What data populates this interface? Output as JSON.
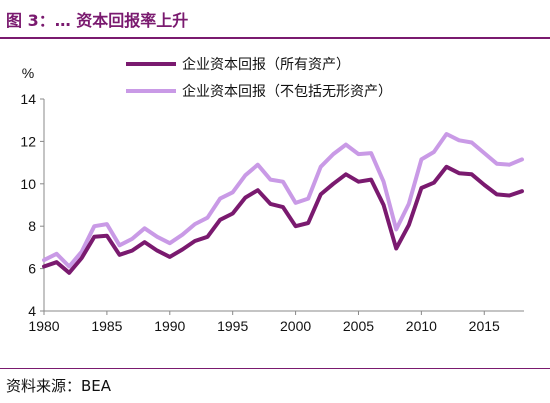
{
  "header": {
    "title": "图 3：… 资本回报率上升"
  },
  "footer": {
    "source": "资料来源：BEA"
  },
  "colors": {
    "accent": "#7a1a6f",
    "series1": "#7a1a6f",
    "series2": "#c99ae6"
  },
  "chart_data": {
    "type": "line",
    "title": "",
    "ylabel": "%",
    "xlabel": "",
    "xlim": [
      1980,
      2018
    ],
    "ylim": [
      4,
      14
    ],
    "xticks": [
      1980,
      1985,
      1990,
      1995,
      2000,
      2005,
      2010,
      2015
    ],
    "yticks": [
      4,
      6,
      8,
      10,
      12,
      14
    ],
    "legend_position": "top",
    "x": [
      1980,
      1981,
      1982,
      1983,
      1984,
      1985,
      1986,
      1987,
      1988,
      1989,
      1990,
      1991,
      1992,
      1993,
      1994,
      1995,
      1996,
      1997,
      1998,
      1999,
      2000,
      2001,
      2002,
      2003,
      2004,
      2005,
      2006,
      2007,
      2008,
      2009,
      2010,
      2011,
      2012,
      2013,
      2014,
      2015,
      2016,
      2017,
      2018
    ],
    "series": [
      {
        "name": "企业资本回报（所有资产）",
        "values": [
          6.1,
          6.3,
          5.8,
          6.5,
          7.5,
          7.55,
          6.65,
          6.85,
          7.25,
          6.85,
          6.55,
          6.9,
          7.3,
          7.5,
          8.3,
          8.6,
          9.35,
          9.7,
          9.05,
          8.9,
          8.0,
          8.15,
          9.5,
          10.0,
          10.45,
          10.1,
          10.2,
          9.0,
          6.95,
          8.05,
          9.8,
          10.05,
          10.8,
          10.5,
          10.45,
          9.95,
          9.5,
          9.45,
          9.65
        ]
      },
      {
        "name": "企业资本回报（不包括无形资产）",
        "values": [
          6.4,
          6.7,
          6.1,
          6.8,
          8.0,
          8.1,
          7.1,
          7.4,
          7.9,
          7.5,
          7.2,
          7.6,
          8.1,
          8.4,
          9.3,
          9.6,
          10.4,
          10.9,
          10.2,
          10.1,
          9.1,
          9.3,
          10.8,
          11.4,
          11.85,
          11.4,
          11.45,
          10.1,
          7.85,
          9.05,
          11.15,
          11.5,
          12.35,
          12.05,
          11.95,
          11.45,
          10.95,
          10.9,
          11.15
        ]
      }
    ]
  }
}
